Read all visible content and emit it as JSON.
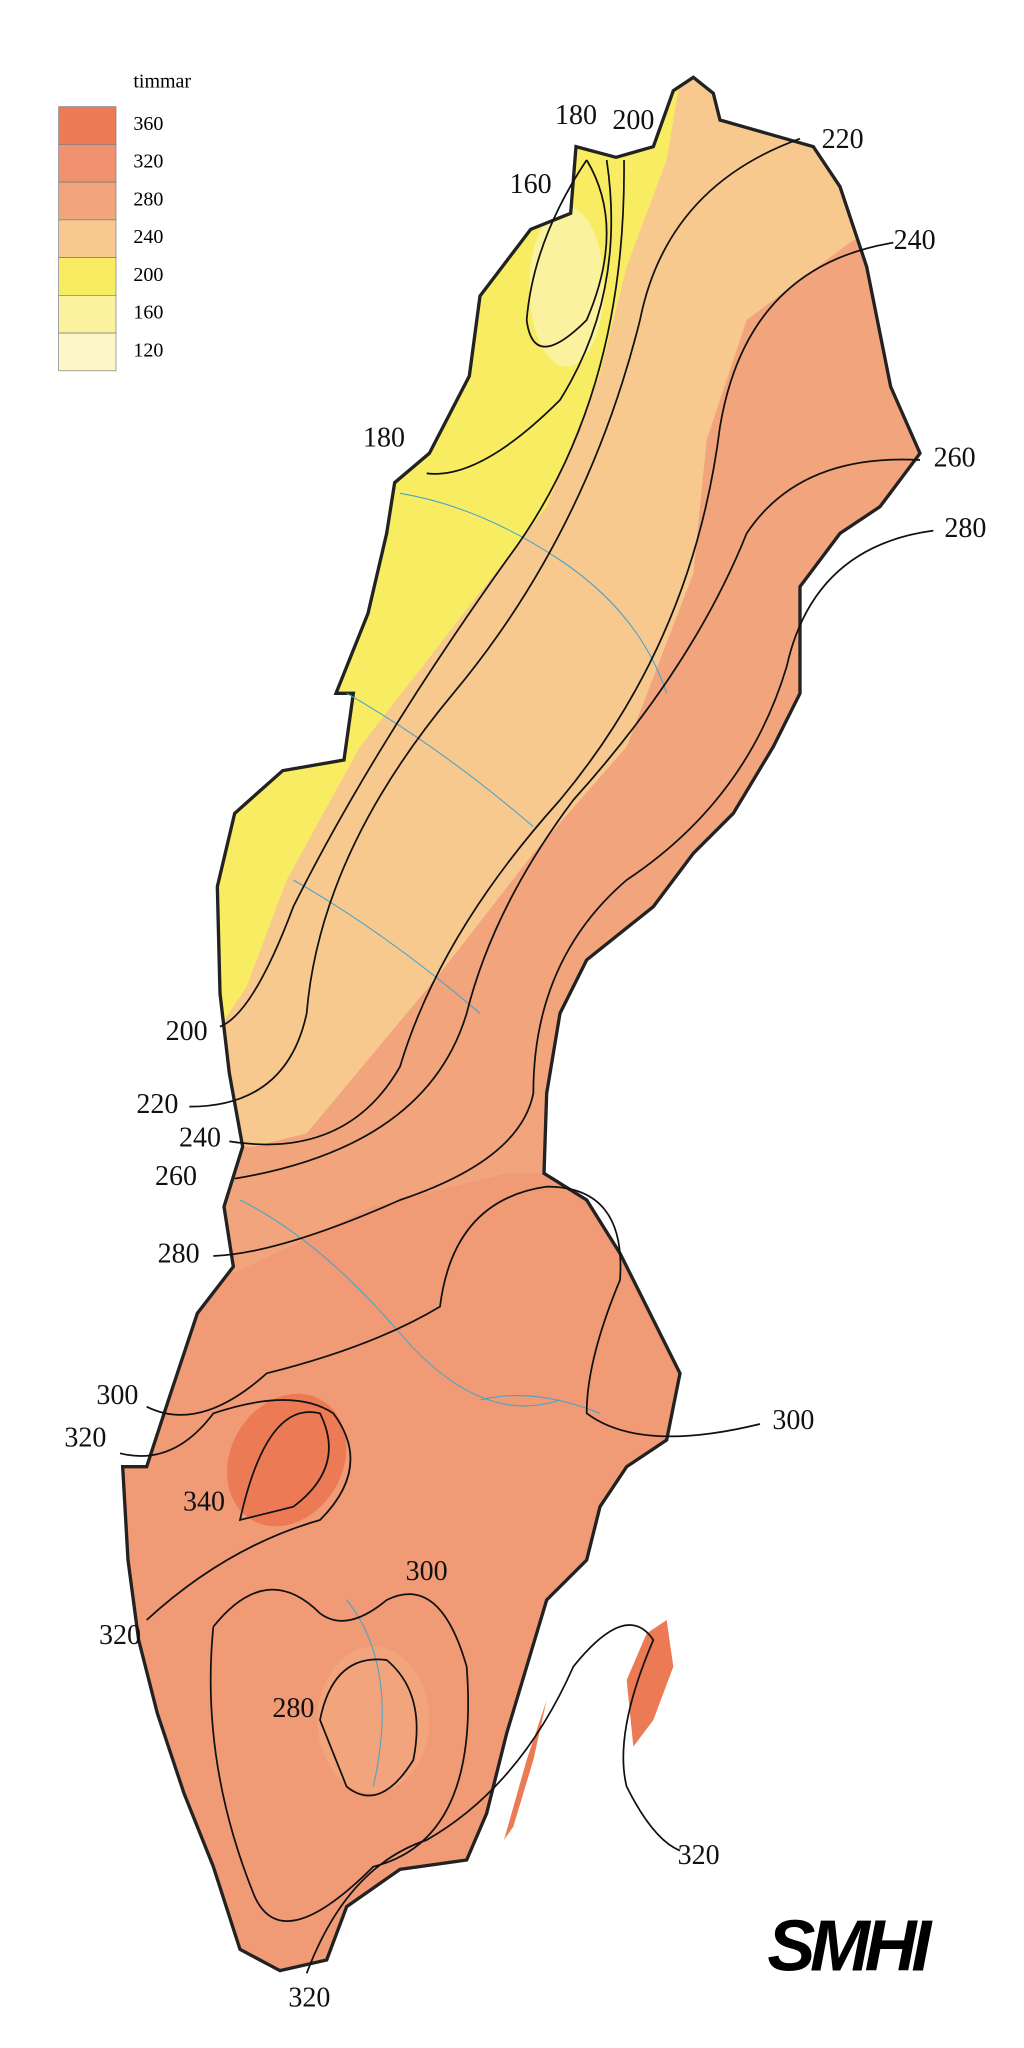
{
  "legend": {
    "title": "timmar",
    "items": [
      {
        "label": "360",
        "color": "#ec7a55"
      },
      {
        "label": "320",
        "color": "#f0916f"
      },
      {
        "label": "280",
        "color": "#f2a47d"
      },
      {
        "label": "240",
        "color": "#f7c98f"
      },
      {
        "label": "200",
        "color": "#f8ed62"
      },
      {
        "label": "160",
        "color": "#fbf2a0"
      },
      {
        "label": "120",
        "color": "#fdf6c6"
      }
    ]
  },
  "contour_labels": [
    "180",
    "200",
    "220",
    "160",
    "240",
    "180",
    "260",
    "280",
    "200",
    "220",
    "240",
    "260",
    "280",
    "300",
    "320",
    "340",
    "300",
    "300",
    "320",
    "280",
    "320",
    "320"
  ],
  "logo": "SMHI"
}
